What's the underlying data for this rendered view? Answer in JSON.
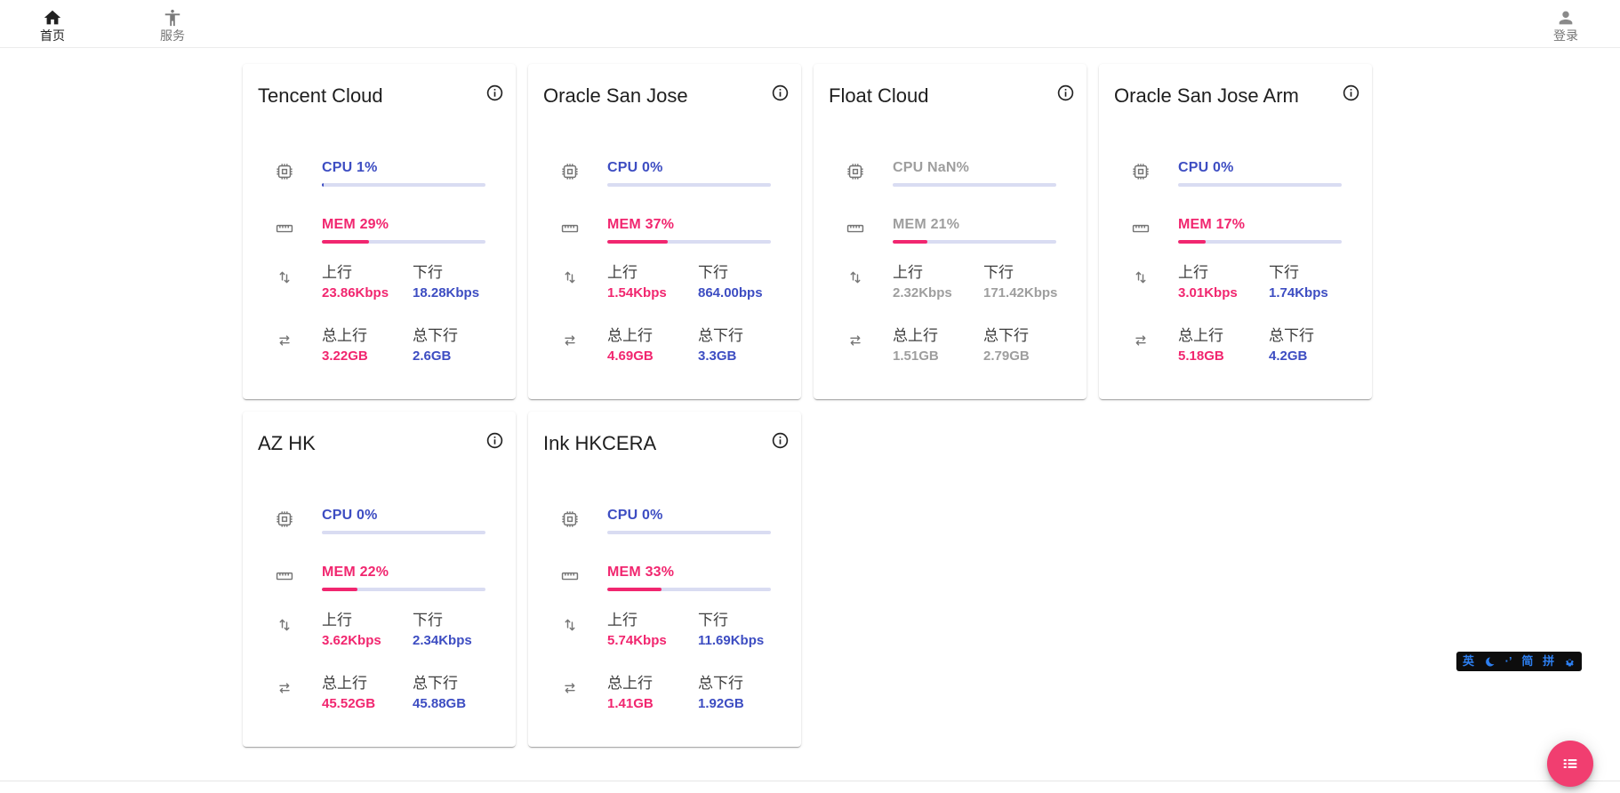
{
  "nav": {
    "home": {
      "label": "首页"
    },
    "services": {
      "label": "服务"
    },
    "login": {
      "label": "登录"
    }
  },
  "card_labels": {
    "up": "上行",
    "down": "下行",
    "total_up": "总上行",
    "total_down": "总下行"
  },
  "servers": [
    {
      "name": "Tencent Cloud",
      "cpu": "CPU 1%",
      "cpu_pct": 1,
      "mem": "MEM 29%",
      "mem_pct": 29,
      "up": "23.86Kbps",
      "down": "18.28Kbps",
      "total_up": "3.22GB",
      "total_down": "2.6GB",
      "muted": false
    },
    {
      "name": "Oracle San Jose",
      "cpu": "CPU 0%",
      "cpu_pct": 0,
      "mem": "MEM 37%",
      "mem_pct": 37,
      "up": "1.54Kbps",
      "down": "864.00bps",
      "total_up": "4.69GB",
      "total_down": "3.3GB",
      "muted": false
    },
    {
      "name": "Float Cloud",
      "cpu": "CPU NaN%",
      "cpu_pct": 0,
      "mem": "MEM 21%",
      "mem_pct": 21,
      "up": "2.32Kbps",
      "down": "171.42Kbps",
      "total_up": "1.51GB",
      "total_down": "2.79GB",
      "muted": true
    },
    {
      "name": "Oracle San Jose Arm",
      "cpu": "CPU 0%",
      "cpu_pct": 0,
      "mem": "MEM 17%",
      "mem_pct": 17,
      "up": "3.01Kbps",
      "down": "1.74Kbps",
      "total_up": "5.18GB",
      "total_down": "4.2GB",
      "muted": false
    },
    {
      "name": "AZ HK",
      "cpu": "CPU 0%",
      "cpu_pct": 0,
      "mem": "MEM 22%",
      "mem_pct": 22,
      "up": "3.62Kbps",
      "down": "2.34Kbps",
      "total_up": "45.52GB",
      "total_down": "45.88GB",
      "muted": false
    },
    {
      "name": "Ink HKCERA",
      "cpu": "CPU 0%",
      "cpu_pct": 0,
      "mem": "MEM 33%",
      "mem_pct": 33,
      "up": "5.74Kbps",
      "down": "11.69Kbps",
      "total_up": "1.41GB",
      "total_down": "1.92GB",
      "muted": false
    }
  ],
  "ime": {
    "lang": "英",
    "punct": "·’",
    "simplified": "简",
    "pinyin": "拼"
  },
  "colors": {
    "accent_blue": "#3d4dc2",
    "accent_pink": "#f1266f",
    "bar_track": "#d9dcf2",
    "muted_text": "#9e9e9e",
    "fab_pink": "#f13e70",
    "ime_blue": "#2d7ff0"
  }
}
